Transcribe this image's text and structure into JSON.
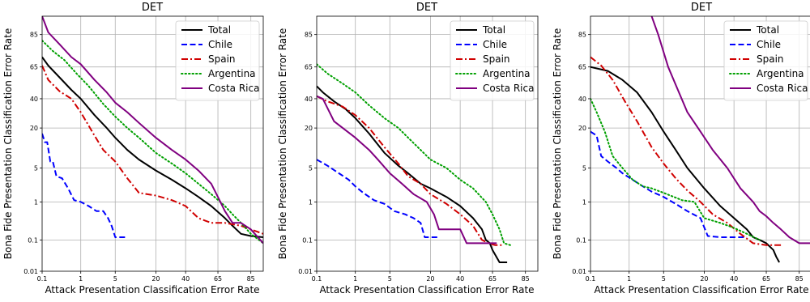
{
  "chart_data": [
    {
      "type": "line",
      "title": "DET",
      "xlabel": "Attack Presentation Classification Error Rate",
      "ylabel": "Bona Fide Presentation Classification Error Rate",
      "x_ticks": [
        "0.1",
        "1",
        "5",
        "20",
        "40",
        "65",
        "85"
      ],
      "y_ticks": [
        "0.01",
        "0.1",
        "1",
        "5",
        "20",
        "40",
        "65",
        "85"
      ],
      "xlim": [
        0.1,
        90
      ],
      "ylim": [
        0.01,
        92
      ],
      "grid": true,
      "legend_position": "top-right",
      "series": [
        {
          "name": "Total",
          "color": "#000000",
          "dash": "solid",
          "x": [
            0.1,
            0.15,
            0.3,
            0.6,
            1,
            2,
            3.5,
            5,
            8,
            12,
            20,
            30,
            40,
            50,
            60,
            70,
            75,
            80,
            85,
            90
          ],
          "y": [
            72,
            66,
            57,
            47,
            40,
            28,
            20,
            15,
            10,
            7,
            4.5,
            3,
            2,
            1.3,
            0.8,
            0.4,
            0.25,
            0.15,
            0.13,
            0.12
          ]
        },
        {
          "name": "Chile",
          "color": "#0000ff",
          "dash": "dashed",
          "x": [
            0.1,
            0.12,
            0.14,
            0.17,
            0.2,
            0.25,
            0.35,
            0.5,
            0.7,
            1.0,
            1.5,
            2.2,
            3,
            3.7,
            4.3,
            5,
            6,
            8
          ],
          "y": [
            17,
            13,
            13,
            6.5,
            6.5,
            3.5,
            3.2,
            2.0,
            1.1,
            1.0,
            0.8,
            0.6,
            0.6,
            0.4,
            0.25,
            0.12,
            0.12,
            0.12
          ]
        },
        {
          "name": "Spain",
          "color": "#d00000",
          "dash": "dashdot",
          "x": [
            0.1,
            0.15,
            0.3,
            0.6,
            1,
            2,
            3,
            5,
            8,
            12,
            20,
            30,
            40,
            50,
            60,
            70,
            80,
            85,
            90
          ],
          "y": [
            66,
            55,
            46,
            40,
            30,
            16,
            10,
            6.5,
            3.2,
            1.6,
            1.4,
            1.1,
            0.8,
            0.4,
            0.3,
            0.3,
            0.25,
            0.2,
            0.15
          ]
        },
        {
          "name": "Argentina",
          "color": "#00a000",
          "dash": "dotted",
          "x": [
            0.1,
            0.2,
            0.4,
            0.8,
            1.5,
            3,
            5,
            8,
            12,
            20,
            30,
            40,
            50,
            60,
            70,
            75,
            80,
            85,
            90
          ],
          "y": [
            82,
            76,
            70,
            60,
            50,
            36,
            27,
            20,
            15,
            9,
            6,
            4,
            2.5,
            1.5,
            0.8,
            0.5,
            0.3,
            0.15,
            0.08
          ]
        },
        {
          "name": "Costa Rica",
          "color": "#800080",
          "dash": "solid",
          "x": [
            0.1,
            0.15,
            0.3,
            0.6,
            1,
            2,
            3.5,
            5,
            8,
            12,
            20,
            30,
            40,
            50,
            60,
            65,
            70,
            75,
            80,
            85,
            90
          ],
          "y": [
            92,
            86,
            80,
            72,
            67,
            55,
            45,
            37,
            30,
            23,
            15,
            10,
            7,
            4.5,
            2.5,
            1.3,
            0.6,
            0.3,
            0.3,
            0.2,
            0.08
          ]
        }
      ]
    },
    {
      "type": "line",
      "title": "DET",
      "xlabel": "Attack Presentation Classification Error Rate",
      "ylabel": "Bona Fide Presentation Classification Error Rate",
      "x_ticks": [
        "0.1",
        "1",
        "5",
        "20",
        "40",
        "65",
        "85"
      ],
      "y_ticks": [
        "0.01",
        "0.1",
        "1",
        "5",
        "20",
        "40",
        "65",
        "85"
      ],
      "xlim": [
        0.1,
        90
      ],
      "ylim": [
        0.01,
        92
      ],
      "grid": true,
      "legend_position": "top-right",
      "series": [
        {
          "name": "Total",
          "color": "#000000",
          "dash": "solid",
          "x": [
            0.1,
            0.15,
            0.3,
            0.6,
            1,
            2,
            4,
            7,
            10,
            15,
            20,
            30,
            40,
            50,
            57,
            60,
            63,
            65,
            70,
            75
          ],
          "y": [
            50,
            45,
            38,
            32,
            26,
            17,
            9,
            5.5,
            4,
            2.5,
            2,
            1.3,
            0.8,
            0.4,
            0.2,
            0.1,
            0.08,
            0.05,
            0.02,
            0.02
          ]
        },
        {
          "name": "Chile",
          "color": "#0000ff",
          "dash": "dashed",
          "x": [
            0.1,
            0.2,
            0.4,
            0.7,
            1,
            1.5,
            2.5,
            4,
            6,
            9,
            12,
            15,
            17,
            25
          ],
          "y": [
            7,
            5.5,
            4,
            3,
            2.2,
            1.6,
            1.1,
            0.9,
            0.6,
            0.5,
            0.4,
            0.3,
            0.12,
            0.12
          ]
        },
        {
          "name": "Spain",
          "color": "#d00000",
          "dash": "dashdot",
          "x": [
            0.1,
            0.2,
            0.5,
            1,
            2,
            4,
            7,
            10,
            15,
            20,
            30,
            40,
            50,
            57,
            62,
            67,
            72
          ],
          "y": [
            42,
            38,
            34,
            28,
            20,
            11,
            6,
            3.5,
            2.5,
            1.5,
            0.9,
            0.5,
            0.25,
            0.1,
            0.08,
            0.07,
            0.07
          ]
        },
        {
          "name": "Argentina",
          "color": "#00a000",
          "dash": "dotted",
          "x": [
            0.1,
            0.2,
            0.5,
            1,
            2,
            4,
            7,
            10,
            15,
            20,
            30,
            40,
            50,
            60,
            65,
            70,
            73,
            77
          ],
          "y": [
            67,
            60,
            52,
            45,
            35,
            26,
            20,
            15,
            10,
            7,
            5,
            3,
            2,
            1,
            0.5,
            0.2,
            0.08,
            0.07
          ]
        },
        {
          "name": "Costa Rica",
          "color": "#800080",
          "dash": "solid",
          "x": [
            0.1,
            0.15,
            0.3,
            0.5,
            1,
            2,
            3,
            5,
            8,
            12,
            18,
            22,
            25,
            40,
            45,
            55,
            60,
            68
          ],
          "y": [
            42,
            40,
            24,
            20,
            15,
            10,
            7,
            4,
            2.5,
            1.5,
            1.0,
            0.5,
            0.2,
            0.2,
            0.08,
            0.08,
            0.08,
            0.08
          ]
        }
      ]
    },
    {
      "type": "line",
      "title": "DET",
      "xlabel": "Attack Presentation Classification Error Rate",
      "ylabel": "Bona Fide Presentation Classification Error Rate",
      "x_ticks": [
        "0.1",
        "1",
        "5",
        "20",
        "40",
        "65",
        "85"
      ],
      "y_ticks": [
        "0.01",
        "0.1",
        "1",
        "5",
        "20",
        "40",
        "65",
        "85"
      ],
      "xlim": [
        0.1,
        90
      ],
      "ylim": [
        0.01,
        92
      ],
      "grid": true,
      "legend_position": "top-right",
      "series": [
        {
          "name": "Total",
          "color": "#000000",
          "dash": "solid",
          "x": [
            0.1,
            0.3,
            0.7,
            1.5,
            3,
            5,
            8,
            12,
            20,
            30,
            40,
            50,
            55,
            60,
            65,
            70,
            72,
            74
          ],
          "y": [
            65,
            62,
            55,
            45,
            30,
            18,
            10,
            5,
            2,
            0.8,
            0.4,
            0.2,
            0.12,
            0.1,
            0.08,
            0.05,
            0.03,
            0.02
          ]
        },
        {
          "name": "Chile",
          "color": "#0000ff",
          "dash": "dashed",
          "x": [
            0.1,
            0.15,
            0.2,
            0.3,
            0.5,
            0.7,
            1.2,
            2,
            3,
            5,
            8,
            12,
            18,
            22,
            30,
            40,
            50
          ],
          "y": [
            18,
            16,
            8,
            6.5,
            5,
            4,
            3,
            2.2,
            1.7,
            1.3,
            0.9,
            0.6,
            0.4,
            0.13,
            0.12,
            0.12,
            0.12
          ]
        },
        {
          "name": "Spain",
          "color": "#d00000",
          "dash": "dashdot",
          "x": [
            0.1,
            0.2,
            0.4,
            0.8,
            1.5,
            3,
            5,
            8,
            12,
            18,
            25,
            35,
            45,
            55,
            65,
            75
          ],
          "y": [
            72,
            66,
            55,
            38,
            24,
            11,
            6,
            3.2,
            1.8,
            1.0,
            0.5,
            0.3,
            0.15,
            0.08,
            0.07,
            0.07
          ]
        },
        {
          "name": "Argentina",
          "color": "#00a000",
          "dash": "dotted",
          "x": [
            0.1,
            0.15,
            0.25,
            0.4,
            0.7,
            1.2,
            2,
            3,
            5,
            10,
            15,
            20,
            30,
            40,
            50,
            60
          ],
          "y": [
            40,
            30,
            18,
            8,
            5,
            3,
            2.2,
            2,
            1.6,
            1.1,
            1,
            0.4,
            0.3,
            0.22,
            0.15,
            0.1
          ]
        },
        {
          "name": "Costa Rica",
          "color": "#800080",
          "dash": "solid",
          "x": [
            3,
            4,
            6,
            9,
            12,
            18,
            25,
            35,
            45,
            55,
            60,
            65,
            70,
            75,
            80,
            85,
            90
          ],
          "y": [
            92,
            85,
            65,
            45,
            30,
            18,
            10,
            5,
            2,
            1,
            0.6,
            0.45,
            0.3,
            0.2,
            0.12,
            0.08,
            0.08
          ]
        }
      ]
    }
  ]
}
